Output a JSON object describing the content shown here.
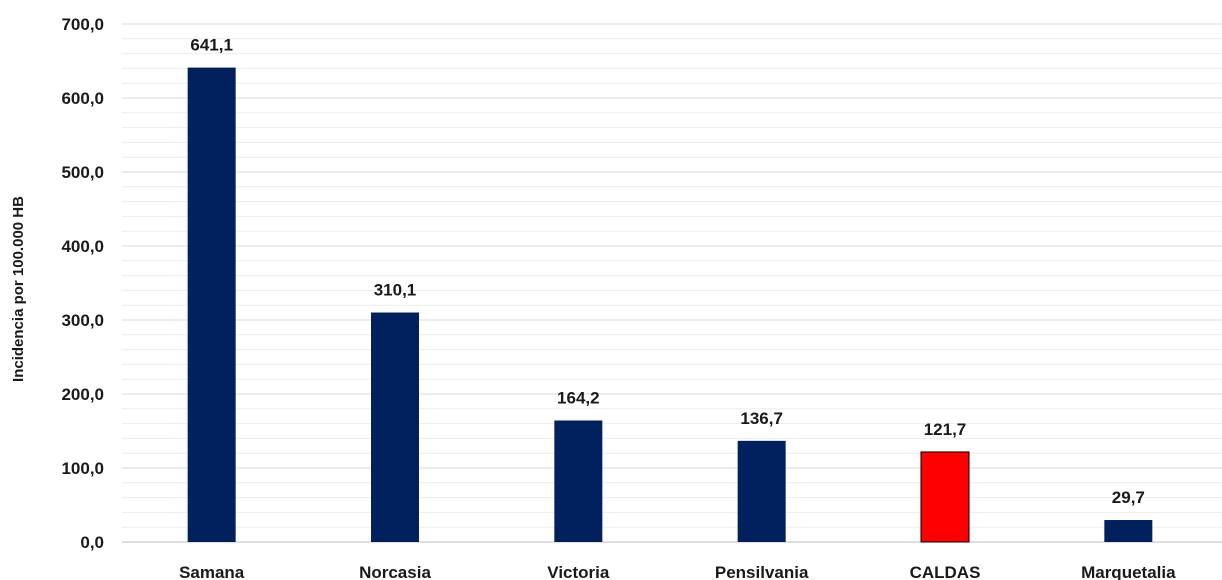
{
  "chart_data": {
    "type": "bar",
    "title": "",
    "xlabel": "",
    "ylabel": "Incidencia por 100.000 HB",
    "ylim": [
      0,
      700
    ],
    "yticks": [
      "0,0",
      "100,0",
      "200,0",
      "300,0",
      "400,0",
      "500,0",
      "600,0",
      "700,0"
    ],
    "categories": [
      "Samana",
      "Norcasia",
      "Victoria",
      "Pensilvania",
      "CALDAS",
      "Marquetalia"
    ],
    "values": [
      641.1,
      310.1,
      164.2,
      136.7,
      121.7,
      29.7
    ],
    "data_labels": [
      "641,1",
      "310,1",
      "164,2",
      "136,7",
      "121,7",
      "29,7"
    ],
    "colors": [
      "#00215e",
      "#00215e",
      "#00215e",
      "#00215e",
      "#ff0000",
      "#00215e"
    ],
    "grid": true,
    "legend": "none"
  }
}
